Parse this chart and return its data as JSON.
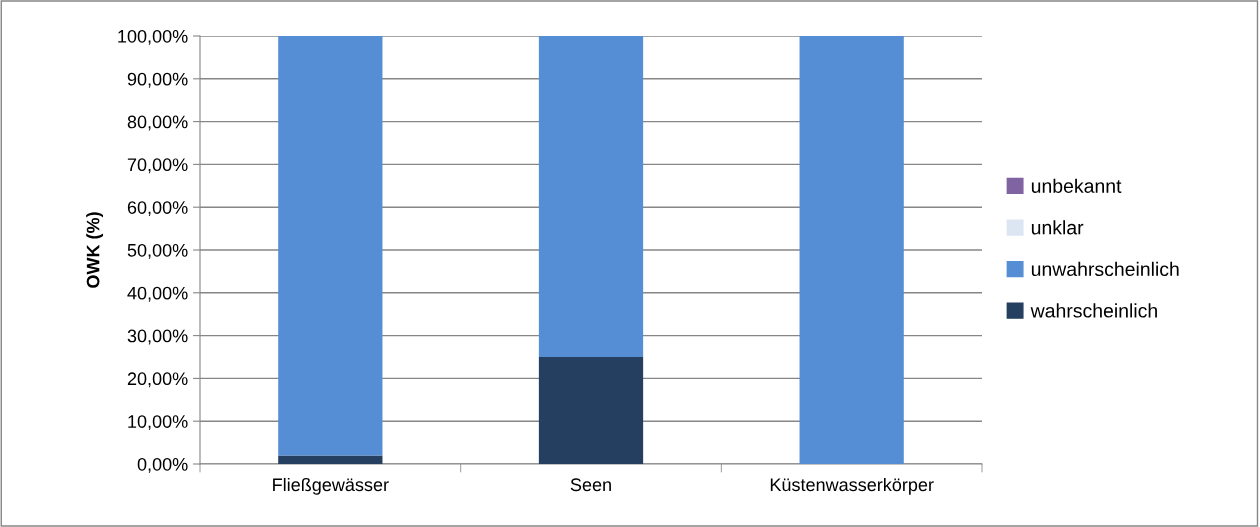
{
  "chart_data": {
    "type": "bar",
    "stacked": true,
    "ylabel": "OWK (%)",
    "categories": [
      "Fließgewässer",
      "Seen",
      "Küstenwasserkörper"
    ],
    "series": [
      {
        "name": "wahrscheinlich",
        "color": "#243f60",
        "values": [
          2,
          25,
          0
        ]
      },
      {
        "name": "unwahrscheinlich",
        "color": "#558ed5",
        "values": [
          98,
          75,
          100
        ]
      },
      {
        "name": "unklar",
        "color": "#dce6f2",
        "values": [
          0,
          0,
          0
        ]
      },
      {
        "name": "unbekannt",
        "color": "#8064a2",
        "values": [
          0,
          0,
          0
        ]
      }
    ],
    "ylim": [
      0,
      100
    ],
    "yticks": [
      {
        "value": 0,
        "label": "0,00%"
      },
      {
        "value": 10,
        "label": "10,00%"
      },
      {
        "value": 20,
        "label": "20,00%"
      },
      {
        "value": 30,
        "label": "30,00%"
      },
      {
        "value": 40,
        "label": "40,00%"
      },
      {
        "value": 50,
        "label": "50,00%"
      },
      {
        "value": 60,
        "label": "60,00%"
      },
      {
        "value": 70,
        "label": "70,00%"
      },
      {
        "value": 80,
        "label": "80,00%"
      },
      {
        "value": 90,
        "label": "90,00%"
      },
      {
        "value": 100,
        "label": "100,00%"
      }
    ],
    "grid": "y",
    "legend": "right"
  }
}
